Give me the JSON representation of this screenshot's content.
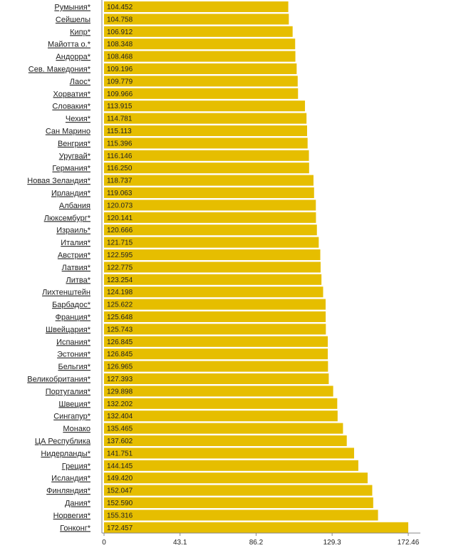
{
  "chart_data": {
    "type": "bar",
    "orientation": "horizontal",
    "bar_color": "#E6BE00",
    "axis_color": "#888888",
    "grid": false,
    "xlim": [
      0,
      172.46
    ],
    "x_ticks": [
      "0",
      "43.1",
      "86.2",
      "129.3",
      "172.46"
    ],
    "x_tick_values": [
      0,
      43.1,
      86.2,
      129.3,
      172.46
    ],
    "categories": [
      "Румыния*",
      "Сейшелы",
      "Кипр*",
      "Майотта о.*",
      "Андорра*",
      "Сев. Македония*",
      "Лаос*",
      "Хорватия*",
      "Словакия*",
      "Чехия*",
      "Сан Марино",
      "Венгрия*",
      "Уругвай*",
      "Германия*",
      "Новая Зеландия*",
      "Ирландия*",
      "Албания",
      "Люксембург*",
      "Израиль*",
      "Италия*",
      "Австрия*",
      "Латвия*",
      "Литва*",
      "Лихтенштейн",
      "Барбадос*",
      "Франция*",
      "Швейцария*",
      "Испания*",
      "Эстония*",
      "Бельгия*",
      "Великобритания*",
      "Португалия*",
      "Швеция*",
      "Сингапур*",
      "Монако",
      "ЦА Республика",
      "Нидерланды*",
      "Греция*",
      "Исландия*",
      "Финляндия*",
      "Дания*",
      "Норвегия*",
      "Гонконг*"
    ],
    "values": [
      104.452,
      104.758,
      106.912,
      108.348,
      108.468,
      109.196,
      109.779,
      109.966,
      113.915,
      114.781,
      115.113,
      115.396,
      116.146,
      116.25,
      118.737,
      119.063,
      120.073,
      120.141,
      120.666,
      121.715,
      122.595,
      122.775,
      123.254,
      124.198,
      125.622,
      125.648,
      125.743,
      126.845,
      126.845,
      126.965,
      127.393,
      129.898,
      132.202,
      132.404,
      135.465,
      137.602,
      141.751,
      144.145,
      149.42,
      152.047,
      152.59,
      155.316,
      172.457
    ],
    "value_labels": [
      "104.452",
      "104.758",
      "106.912",
      "108.348",
      "108.468",
      "109.196",
      "109.779",
      "109.966",
      "113.915",
      "114.781",
      "115.113",
      "115.396",
      "116.146",
      "116.250",
      "118.737",
      "119.063",
      "120.073",
      "120.141",
      "120.666",
      "121.715",
      "122.595",
      "122.775",
      "123.254",
      "124.198",
      "125.622",
      "125.648",
      "125.743",
      "126.845",
      "126.845",
      "126.965",
      "127.393",
      "129.898",
      "132.202",
      "132.404",
      "135.465",
      "137.602",
      "141.751",
      "144.145",
      "149.420",
      "152.047",
      "152.590",
      "155.316",
      "172.457"
    ]
  }
}
